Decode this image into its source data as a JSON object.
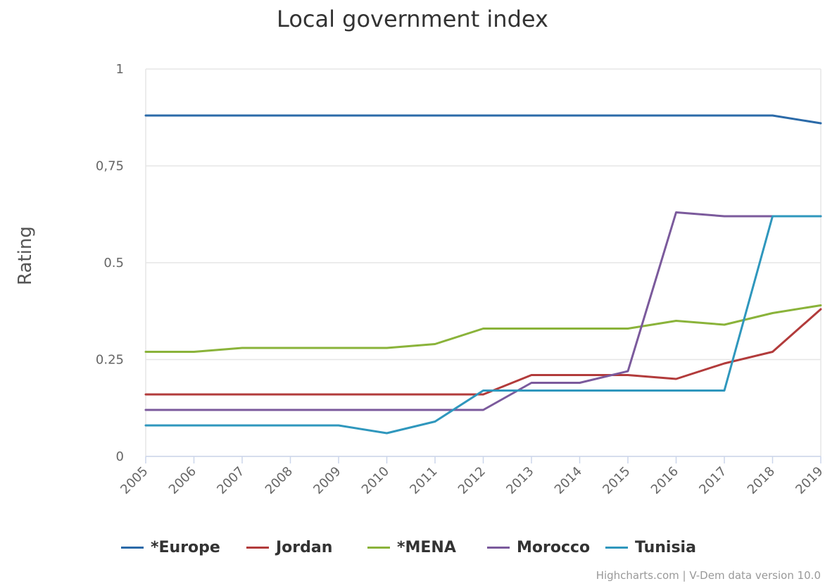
{
  "chart_data": {
    "type": "line",
    "title": "Local government index",
    "ylabel": "Rating",
    "xlabel": "",
    "x": [
      "2005",
      "2006",
      "2007",
      "2008",
      "2009",
      "2010",
      "2011",
      "2012",
      "2013",
      "2014",
      "2015",
      "2016",
      "2017",
      "2018",
      "2019"
    ],
    "ylim": [
      0,
      1
    ],
    "yticks": [
      0,
      0.25,
      0.5,
      0.75,
      1
    ],
    "ytick_labels": [
      "0",
      "0.25",
      "0.5",
      "0,75",
      "1"
    ],
    "grid": "horizontal",
    "legend": "bottom",
    "series": [
      {
        "name": "*Europe",
        "color": "#2b6aa8",
        "values": [
          0.88,
          0.88,
          0.88,
          0.88,
          0.88,
          0.88,
          0.88,
          0.88,
          0.88,
          0.88,
          0.88,
          0.88,
          0.88,
          0.88,
          0.86
        ]
      },
      {
        "name": "Jordan",
        "color": "#b23b3b",
        "values": [
          0.16,
          0.16,
          0.16,
          0.16,
          0.16,
          0.16,
          0.16,
          0.16,
          0.21,
          0.21,
          0.21,
          0.2,
          0.24,
          0.27,
          0.38
        ]
      },
      {
        "name": "*MENA",
        "color": "#8ab33a",
        "values": [
          0.27,
          0.27,
          0.28,
          0.28,
          0.28,
          0.28,
          0.29,
          0.33,
          0.33,
          0.33,
          0.33,
          0.35,
          0.34,
          0.37,
          0.39
        ]
      },
      {
        "name": "Morocco",
        "color": "#7b5a9c",
        "values": [
          0.12,
          0.12,
          0.12,
          0.12,
          0.12,
          0.12,
          0.12,
          0.12,
          0.19,
          0.19,
          0.22,
          0.63,
          0.62,
          0.62,
          0.62
        ]
      },
      {
        "name": "Tunisia",
        "color": "#2f97bd",
        "values": [
          0.08,
          0.08,
          0.08,
          0.08,
          0.08,
          0.06,
          0.09,
          0.17,
          0.17,
          0.17,
          0.17,
          0.17,
          0.17,
          0.62,
          0.62
        ]
      }
    ]
  },
  "credits": "Highcharts.com | V-Dem data version 10.0"
}
